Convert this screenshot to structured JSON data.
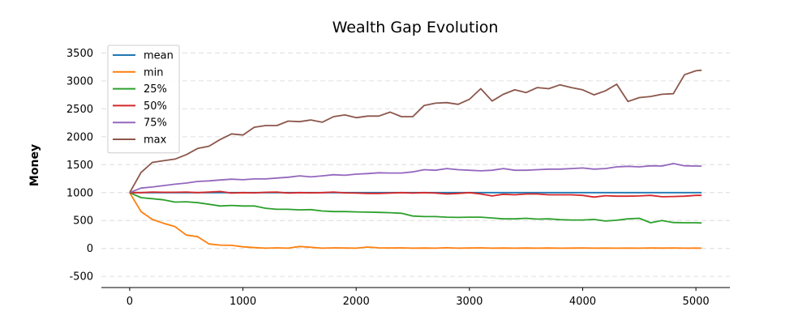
{
  "chart_data": {
    "type": "line",
    "title": "Wealth Gap Evolution",
    "xlabel": "",
    "ylabel": "Money",
    "xlim": [
      -250,
      5300
    ],
    "ylim": [
      -700,
      3650
    ],
    "xticks": [
      0,
      1000,
      2000,
      3000,
      4000,
      5000
    ],
    "yticks": [
      -500,
      0,
      500,
      1000,
      1500,
      2000,
      2500,
      3000,
      3500
    ],
    "grid": "horizontal dashed",
    "legend_position": "top-left",
    "x": [
      0,
      100,
      200,
      300,
      400,
      500,
      600,
      700,
      800,
      900,
      1000,
      1100,
      1200,
      1300,
      1400,
      1500,
      1600,
      1700,
      1800,
      1900,
      2000,
      2100,
      2200,
      2300,
      2400,
      2500,
      2600,
      2700,
      2800,
      2900,
      3000,
      3100,
      3200,
      3300,
      3400,
      3500,
      3600,
      3700,
      3800,
      3900,
      4000,
      4100,
      4200,
      4300,
      4400,
      4500,
      4600,
      4700,
      4800,
      4900,
      5000,
      5050
    ],
    "series": [
      {
        "name": "mean",
        "color": "#1f77b4",
        "values": [
          1000,
          1000,
          1000,
          1000,
          1000,
          1000,
          1000,
          1000,
          1000,
          1000,
          1000,
          1000,
          1000,
          1000,
          1000,
          1000,
          1000,
          1000,
          1000,
          1000,
          1000,
          1000,
          1000,
          1000,
          1000,
          1000,
          1000,
          1000,
          1000,
          1000,
          1000,
          1000,
          1000,
          1000,
          1000,
          1000,
          1000,
          1000,
          1000,
          1000,
          1000,
          1000,
          1000,
          1000,
          1000,
          1000,
          1000,
          1000,
          1000,
          1000,
          1000,
          1000
        ]
      },
      {
        "name": "min",
        "color": "#ff7f0e",
        "values": [
          1000,
          660,
          520,
          450,
          390,
          240,
          210,
          80,
          60,
          55,
          30,
          15,
          5,
          10,
          5,
          35,
          20,
          5,
          10,
          8,
          5,
          25,
          10,
          8,
          10,
          5,
          8,
          5,
          12,
          5,
          8,
          10,
          5,
          8,
          5,
          7,
          5,
          8,
          5,
          6,
          8,
          5,
          6,
          5,
          6,
          5,
          8,
          6,
          7,
          5,
          6,
          5
        ]
      },
      {
        "name": "25%",
        "color": "#2ca02c",
        "values": [
          1000,
          910,
          890,
          870,
          830,
          835,
          820,
          790,
          760,
          770,
          760,
          760,
          720,
          700,
          700,
          690,
          695,
          670,
          660,
          660,
          655,
          650,
          645,
          640,
          630,
          580,
          570,
          570,
          560,
          555,
          560,
          560,
          545,
          530,
          530,
          540,
          525,
          530,
          515,
          510,
          510,
          520,
          490,
          505,
          530,
          540,
          460,
          500,
          465,
          460,
          460,
          455
        ]
      },
      {
        "name": "50%",
        "color": "#d62728",
        "values": [
          1000,
          1000,
          1010,
          1005,
          1005,
          1010,
          1000,
          1010,
          1020,
          990,
          1000,
          995,
          1005,
          1010,
          990,
          1000,
          995,
          1000,
          1010,
          995,
          990,
          985,
          985,
          990,
          1000,
          990,
          1000,
          990,
          975,
          985,
          1000,
          975,
          940,
          970,
          960,
          975,
          975,
          960,
          960,
          960,
          950,
          920,
          945,
          935,
          935,
          940,
          950,
          925,
          930,
          935,
          950,
          950
        ]
      },
      {
        "name": "75%",
        "color": "#9467bd",
        "values": [
          1000,
          1080,
          1100,
          1125,
          1150,
          1170,
          1200,
          1210,
          1225,
          1240,
          1230,
          1245,
          1245,
          1260,
          1275,
          1300,
          1280,
          1300,
          1320,
          1310,
          1330,
          1340,
          1355,
          1350,
          1350,
          1370,
          1410,
          1400,
          1430,
          1410,
          1400,
          1390,
          1400,
          1430,
          1400,
          1400,
          1410,
          1420,
          1420,
          1430,
          1440,
          1420,
          1430,
          1460,
          1470,
          1460,
          1480,
          1475,
          1520,
          1480,
          1475,
          1475
        ]
      },
      {
        "name": "max",
        "color": "#8c564b",
        "values": [
          1000,
          1360,
          1540,
          1570,
          1600,
          1680,
          1790,
          1830,
          1950,
          2050,
          2030,
          2170,
          2200,
          2200,
          2280,
          2270,
          2300,
          2260,
          2360,
          2390,
          2340,
          2370,
          2370,
          2440,
          2360,
          2360,
          2560,
          2600,
          2610,
          2580,
          2670,
          2860,
          2640,
          2760,
          2840,
          2790,
          2880,
          2860,
          2930,
          2880,
          2840,
          2750,
          2820,
          2940,
          2630,
          2700,
          2720,
          2760,
          2770,
          3110,
          3180,
          3190
        ]
      }
    ]
  }
}
